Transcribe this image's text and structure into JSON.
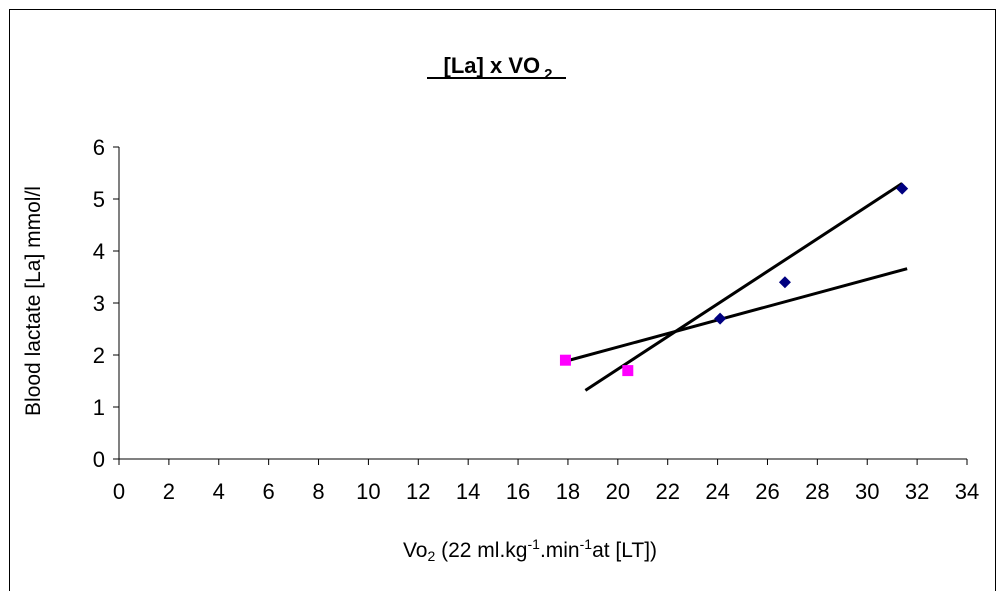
{
  "chart_data": {
    "type": "scatter",
    "title": "[La] x VO",
    "title_subscript": "2",
    "xlabel_main": "Vo",
    "xlabel_sub": "2",
    "xlabel_mid": " (22 ml.kg",
    "xlabel_sup1": "-1",
    "xlabel_mid2": ".min",
    "xlabel_sup2": "-1",
    "xlabel_end": "at [LT])",
    "ylabel": "Blood lactate [La] mmol/l",
    "xlim": [
      0,
      34
    ],
    "ylim": [
      0,
      6
    ],
    "xticks": [
      "0",
      "2",
      "4",
      "6",
      "8",
      "10",
      "12",
      "14",
      "16",
      "18",
      "20",
      "22",
      "24",
      "26",
      "28",
      "30",
      "32",
      "34"
    ],
    "yticks": [
      "0",
      "1",
      "2",
      "3",
      "4",
      "5",
      "6"
    ],
    "grid": false,
    "legend": "none",
    "series": [
      {
        "marker": "diamond",
        "color": "#000080",
        "points": [
          {
            "x": 24.1,
            "y": 2.7
          },
          {
            "x": 26.7,
            "y": 3.4
          },
          {
            "x": 31.4,
            "y": 5.2
          }
        ]
      },
      {
        "marker": "square",
        "color": "#ff00ff",
        "points": [
          {
            "x": 17.9,
            "y": 1.9
          },
          {
            "x": 20.4,
            "y": 1.7
          }
        ]
      }
    ],
    "trendlines": [
      {
        "x1": 17.9,
        "y1": 1.88,
        "x2": 31.6,
        "y2": 3.66,
        "color": "#000000"
      },
      {
        "x1": 18.7,
        "y1": 1.32,
        "x2": 31.4,
        "y2": 5.3,
        "color": "#000000"
      }
    ]
  }
}
